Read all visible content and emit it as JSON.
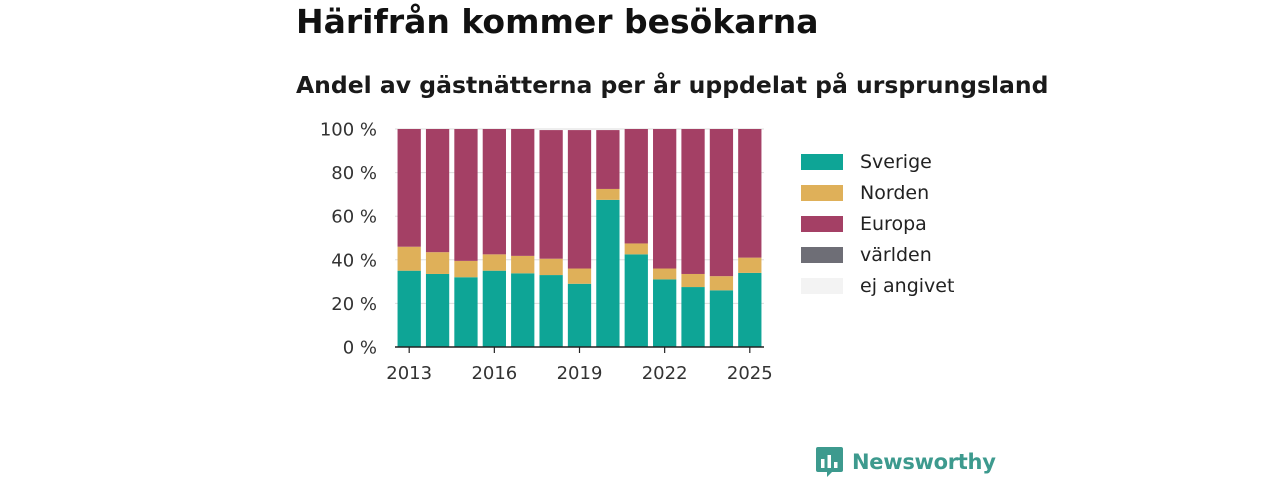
{
  "title": "Härifrån kommer besökarna",
  "subtitle": "Andel av gästnätterna per år uppdelat på ursprungsland",
  "brand": {
    "name": "Newsworthy",
    "color": "#3d9a8e"
  },
  "legend": {
    "items": [
      {
        "label": "Sverige",
        "color": "#0ea596"
      },
      {
        "label": "Norden",
        "color": "#dfb059"
      },
      {
        "label": "Europa",
        "color": "#a44065"
      },
      {
        "label": "världen",
        "color": "#6e6e76"
      },
      {
        "label": "ej angivet",
        "color": "#f3f3f3"
      }
    ]
  },
  "chart_data": {
    "type": "bar",
    "stacked": true,
    "title": "",
    "xlabel": "",
    "ylabel": "",
    "ylim": [
      0,
      100
    ],
    "yticks": [
      "0 %",
      "20 %",
      "40 %",
      "60 %",
      "80 %",
      "100 %"
    ],
    "xticks": [
      "2013",
      "2016",
      "2019",
      "2022",
      "2025"
    ],
    "categories": [
      "2013",
      "2014",
      "2015",
      "2016",
      "2017",
      "2018",
      "2019",
      "2020",
      "2021",
      "2022",
      "2023",
      "2024",
      "2025"
    ],
    "grid": true,
    "legend_position": "right",
    "series": [
      {
        "name": "Sverige",
        "color": "#0ea596",
        "values": [
          35,
          33.5,
          32,
          35,
          33.8,
          33,
          29,
          67.5,
          42.5,
          31,
          27.5,
          26,
          34
        ]
      },
      {
        "name": "Norden",
        "color": "#dfb059",
        "values": [
          11,
          10,
          7.5,
          7.5,
          8,
          7.5,
          7,
          5,
          5,
          5,
          6,
          6.5,
          7
        ]
      },
      {
        "name": "Europa",
        "color": "#a44065",
        "values": [
          54,
          56.5,
          60.5,
          57.5,
          58.2,
          59,
          63.5,
          27,
          52.5,
          64,
          66.5,
          67.5,
          59
        ]
      },
      {
        "name": "världen",
        "color": "#6e6e76",
        "values": [
          0,
          0,
          0,
          0,
          0,
          0,
          0,
          0,
          0,
          0,
          0,
          0,
          0
        ]
      },
      {
        "name": "ej angivet",
        "color": "#f3f3f3",
        "values": [
          0,
          0,
          0,
          0,
          0,
          0,
          0,
          0,
          0,
          0,
          0,
          0,
          0
        ]
      }
    ]
  }
}
